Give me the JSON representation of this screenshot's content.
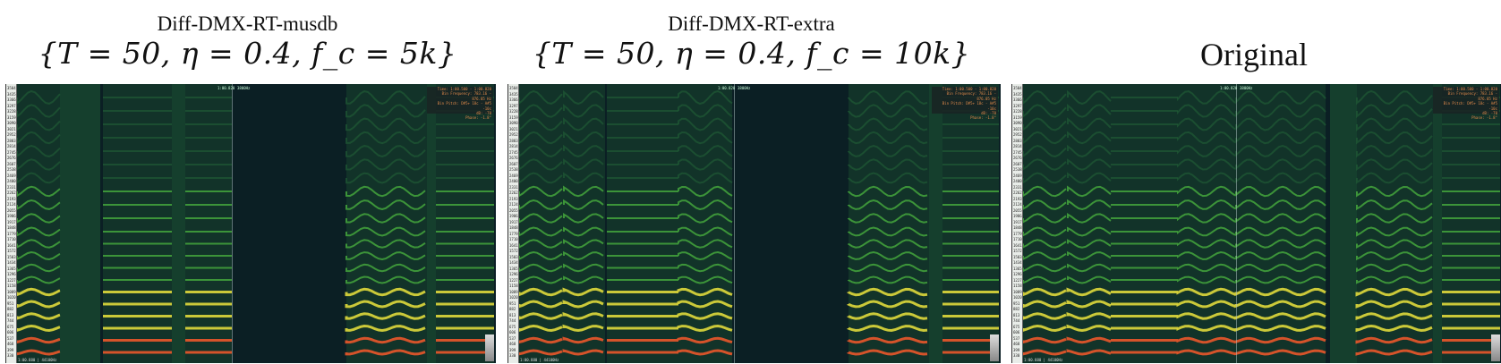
{
  "panels": [
    {
      "title_line1": "Diff-DMX-RT-musdb",
      "title_line2": "{T = 50, η = 0.4,  f_c = 5k}",
      "topread": [
        "1:00.820",
        "3800Hz"
      ],
      "info": [
        "Time: 1:00.500 - 1:00.820",
        "Bin Frequency: 783.16 - 876.05 Hz",
        "Bin Pitch: D#5+ 18c - A#5 -10c",
        "dB: -70",
        "Phase: -1.8°"
      ],
      "botread": "1:00.880 | 44100Hz",
      "ytick": [
        "3504",
        "3435",
        "3366",
        "3297",
        "3228",
        "3159",
        "3090",
        "3021",
        "2952",
        "2883",
        "2814",
        "2745",
        "2676",
        "2607",
        "2538",
        "2469",
        "2400",
        "2331",
        "2262",
        "2193",
        "2124",
        "2055",
        "1986",
        "1917",
        "1848",
        "1779",
        "1710",
        "1641",
        "1572",
        "1503",
        "1434",
        "1365",
        "1296",
        "1227",
        "1158",
        "1089",
        "1020",
        "951",
        "882",
        "813",
        "744",
        "675",
        "606",
        "537",
        "468",
        "399",
        "330"
      ]
    },
    {
      "title_line1": "Diff-DMX-RT-extra",
      "title_line2": "{T = 50, η = 0.4,  f_c = 10k}",
      "topread": [
        "1:00.820",
        "3800Hz"
      ],
      "info": [
        "Time: 1:00.500 - 1:00.820",
        "Bin Frequency: 783.16 - 876.05 Hz",
        "Bin Pitch: D#5+ 18c - A#5 -10c",
        "dB: -70",
        "Phase: -1.8°"
      ],
      "botread": "1:00.880 | 44100Hz",
      "ytick": [
        "3504",
        "3435",
        "3366",
        "3297",
        "3228",
        "3159",
        "3090",
        "3021",
        "2952",
        "2883",
        "2814",
        "2745",
        "2676",
        "2607",
        "2538",
        "2469",
        "2400",
        "2331",
        "2262",
        "2193",
        "2124",
        "2055",
        "1986",
        "1917",
        "1848",
        "1779",
        "1710",
        "1641",
        "1572",
        "1503",
        "1434",
        "1365",
        "1296",
        "1227",
        "1158",
        "1089",
        "1020",
        "951",
        "882",
        "813",
        "744",
        "675",
        "606",
        "537",
        "468",
        "399",
        "330"
      ]
    },
    {
      "title_big": "Original",
      "topread": [
        "1:00.820",
        "3800Hz"
      ],
      "info": [
        "Time: 1:00.500 - 1:00.820",
        "Bin Frequency: 783.16 - 876.05 Hz",
        "Bin Pitch: D#5+ 18c - A#5 -10c",
        "dB: -70",
        "Phase: -1.8°"
      ],
      "botread": "1:00.880 | 44100Hz",
      "ytick": [
        "3504",
        "3435",
        "3366",
        "3297",
        "3228",
        "3159",
        "3090",
        "3021",
        "2952",
        "2883",
        "2814",
        "2745",
        "2676",
        "2607",
        "2538",
        "2469",
        "2400",
        "2331",
        "2262",
        "2193",
        "2124",
        "2055",
        "1986",
        "1917",
        "1848",
        "1779",
        "1710",
        "1641",
        "1572",
        "1503",
        "1434",
        "1365",
        "1296",
        "1227",
        "1158",
        "1089",
        "1020",
        "951",
        "882",
        "813",
        "744",
        "675",
        "606",
        "537",
        "468",
        "399",
        "330"
      ]
    }
  ],
  "colors": {
    "bg": "#0b1f24",
    "low": "#1f5a34",
    "mid": "#3f9a3a",
    "high": "#d6d23a",
    "peak": "#e0552a"
  }
}
